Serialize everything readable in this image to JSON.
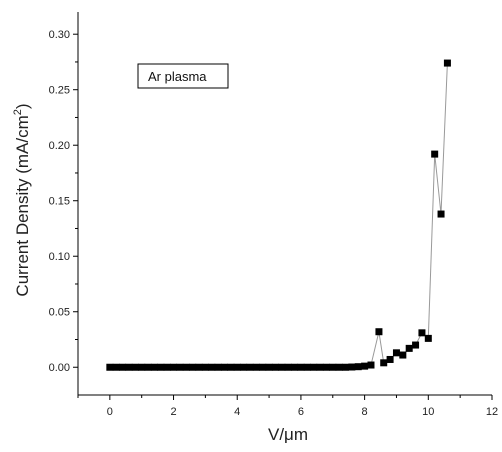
{
  "chart_data": {
    "type": "line",
    "xlabel": "V/μm",
    "ylabel": "Current Density (mA/cm",
    "ylabel_sup": "2",
    "ylabel_close": ")",
    "legend_label": "Ar plasma",
    "xlim": [
      -1,
      12
    ],
    "ylim": [
      -0.025,
      0.32
    ],
    "xticks": [
      0,
      2,
      4,
      6,
      8,
      10,
      12
    ],
    "yticks": [
      0.0,
      0.05,
      0.1,
      0.15,
      0.2,
      0.25,
      0.3
    ],
    "ytick_labels": [
      "0.00",
      "0.05",
      "0.10",
      "0.15",
      "0.20",
      "0.25",
      "0.30"
    ],
    "grid": false,
    "marker": "square",
    "series_color": "#000000",
    "line_color": "#999999",
    "series": [
      {
        "x": [
          0.0,
          0.2,
          0.4,
          0.6,
          0.8,
          1.0,
          1.2,
          1.4,
          1.6,
          1.8,
          2.0,
          2.2,
          2.4,
          2.6,
          2.8,
          3.0,
          3.2,
          3.4,
          3.6,
          3.8,
          4.0,
          4.2,
          4.4,
          4.6,
          4.8,
          5.0,
          5.2,
          5.4,
          5.6,
          5.8,
          6.0,
          6.2,
          6.4,
          6.6,
          6.8,
          7.0,
          7.2,
          7.4,
          7.6,
          7.8,
          8.0,
          8.2,
          8.45,
          8.6,
          8.8,
          9.0,
          9.2,
          9.4,
          9.6,
          9.8,
          10.0,
          10.2,
          10.4,
          10.6
        ],
        "y": [
          0,
          0,
          0,
          0,
          0,
          0,
          0,
          0,
          0,
          0,
          0,
          0,
          0,
          0,
          0,
          0,
          0,
          0,
          0,
          0,
          0,
          0,
          0,
          0,
          0,
          0,
          0,
          0,
          0,
          0,
          0,
          0,
          0,
          0,
          0,
          0,
          0,
          0,
          0.0002,
          0.0005,
          0.001,
          0.002,
          0.032,
          0.004,
          0.007,
          0.013,
          0.011,
          0.017,
          0.02,
          0.031,
          0.026,
          0.192,
          0.138,
          0.274
        ]
      }
    ]
  }
}
